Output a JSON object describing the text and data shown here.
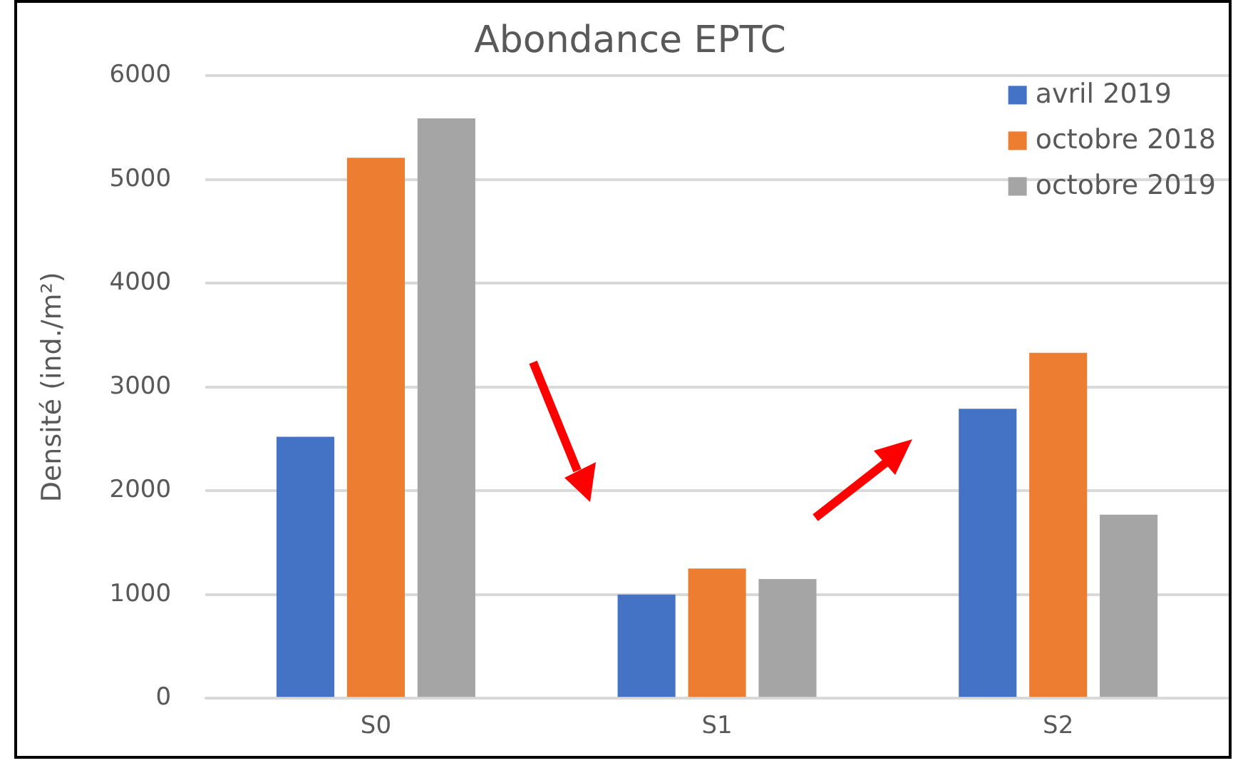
{
  "chart_data": {
    "type": "bar",
    "title": "Abondance EPTC",
    "ylabel": "Densité (ind./m²)",
    "categories": [
      "S0",
      "S1",
      "S2"
    ],
    "series": [
      {
        "name": "avril 2019",
        "color": "#4472c4",
        "values": [
          2520,
          1000,
          2790
        ]
      },
      {
        "name": "octobre 2018",
        "color": "#ed7d31",
        "values": [
          5210,
          1250,
          3330
        ]
      },
      {
        "name": "octobre 2019",
        "color": "#a5a5a5",
        "values": [
          5590,
          1150,
          1770
        ]
      }
    ],
    "ylim": [
      0,
      6000
    ],
    "yticks": [
      0,
      1000,
      2000,
      3000,
      4000,
      5000,
      6000
    ],
    "grid": "y",
    "legend": "top right"
  }
}
